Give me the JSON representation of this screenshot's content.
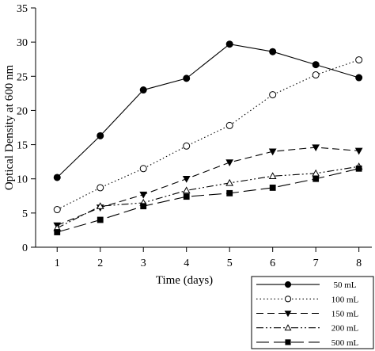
{
  "chart_data": {
    "type": "line",
    "title": "",
    "xlabel": "Time (days)",
    "ylabel": "Optical Density at 600 nm",
    "x": [
      1,
      2,
      3,
      4,
      5,
      6,
      7,
      8
    ],
    "xlim": [
      0.5,
      8.3
    ],
    "ylim": [
      0,
      35
    ],
    "xticks": [
      "1",
      "2",
      "3",
      "4",
      "5",
      "6",
      "7",
      "8"
    ],
    "yticks": [
      "0",
      "5",
      "10",
      "15",
      "20",
      "25",
      "30",
      "35"
    ],
    "grid": false,
    "legend_position": "bottom-right",
    "series": [
      {
        "name": "50 mL",
        "marker": "filled-circle",
        "dash": "solid",
        "values": [
          10.2,
          16.3,
          23.0,
          24.7,
          29.7,
          28.6,
          26.7,
          24.8
        ]
      },
      {
        "name": "100 mL",
        "marker": "open-circle",
        "dash": "dotted",
        "values": [
          5.5,
          8.7,
          11.5,
          14.8,
          17.8,
          22.3,
          25.2,
          27.4
        ]
      },
      {
        "name": "150 mL",
        "marker": "filled-triangle-down",
        "dash": "dashed",
        "values": [
          3.2,
          5.8,
          7.7,
          10.0,
          12.4,
          14.0,
          14.6,
          14.1
        ]
      },
      {
        "name": "200 mL",
        "marker": "open-triangle-up",
        "dash": "dash-dot-dot",
        "values": [
          2.8,
          6.0,
          6.5,
          8.3,
          9.4,
          10.4,
          10.8,
          11.8
        ]
      },
      {
        "name": "500 mL",
        "marker": "filled-square",
        "dash": "long-dash",
        "values": [
          2.2,
          4.0,
          6.0,
          7.4,
          7.9,
          8.7,
          10.0,
          11.5
        ]
      }
    ]
  }
}
